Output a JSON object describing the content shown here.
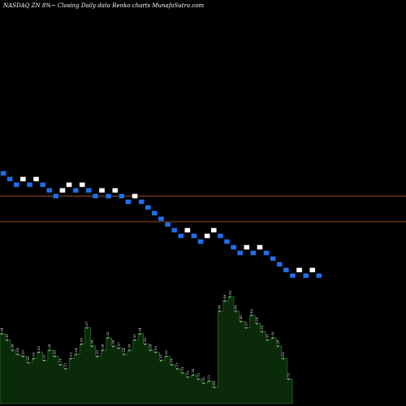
{
  "header": {
    "title": "NASDAQ ZN  8%~  Closing Daily data  Renko  charts MunafaSutra.com"
  },
  "colors": {
    "background": "#000000",
    "up_brick": "#ffffff",
    "down_brick": "#1e6fe8",
    "brick_border": "#000000",
    "reference_line": "#c8642e",
    "volume_fill": "#0a2a0a",
    "volume_stroke": "#2e8b2e",
    "text": "#ffffff"
  },
  "chart_data": [
    {
      "type": "renko",
      "title": "NASDAQ ZN  8%~  Closing Daily data  Renko  charts MunafaSutra.com",
      "xlabel": "",
      "ylabel": "",
      "ylim": [
        0,
        31
      ],
      "bricks": [
        {
          "level": 30,
          "dir": "down"
        },
        {
          "level": 29,
          "dir": "down"
        },
        {
          "level": 28,
          "dir": "down"
        },
        {
          "level": 29,
          "dir": "up"
        },
        {
          "level": 28,
          "dir": "down"
        },
        {
          "level": 29,
          "dir": "up"
        },
        {
          "level": 28,
          "dir": "down"
        },
        {
          "level": 27,
          "dir": "down"
        },
        {
          "level": 26,
          "dir": "down"
        },
        {
          "level": 27,
          "dir": "up"
        },
        {
          "level": 28,
          "dir": "up"
        },
        {
          "level": 27,
          "dir": "down"
        },
        {
          "level": 28,
          "dir": "up"
        },
        {
          "level": 27,
          "dir": "down"
        },
        {
          "level": 26,
          "dir": "down"
        },
        {
          "level": 27,
          "dir": "up"
        },
        {
          "level": 26,
          "dir": "down"
        },
        {
          "level": 27,
          "dir": "up"
        },
        {
          "level": 26,
          "dir": "down"
        },
        {
          "level": 25,
          "dir": "down"
        },
        {
          "level": 26,
          "dir": "up"
        },
        {
          "level": 25,
          "dir": "down"
        },
        {
          "level": 24,
          "dir": "down"
        },
        {
          "level": 23,
          "dir": "down"
        },
        {
          "level": 22,
          "dir": "down"
        },
        {
          "level": 21,
          "dir": "down"
        },
        {
          "level": 20,
          "dir": "down"
        },
        {
          "level": 19,
          "dir": "down"
        },
        {
          "level": 20,
          "dir": "up"
        },
        {
          "level": 19,
          "dir": "down"
        },
        {
          "level": 18,
          "dir": "down"
        },
        {
          "level": 19,
          "dir": "up"
        },
        {
          "level": 20,
          "dir": "up"
        },
        {
          "level": 19,
          "dir": "down"
        },
        {
          "level": 18,
          "dir": "down"
        },
        {
          "level": 17,
          "dir": "down"
        },
        {
          "level": 16,
          "dir": "down"
        },
        {
          "level": 17,
          "dir": "up"
        },
        {
          "level": 16,
          "dir": "down"
        },
        {
          "level": 17,
          "dir": "up"
        },
        {
          "level": 16,
          "dir": "down"
        },
        {
          "level": 15,
          "dir": "down"
        },
        {
          "level": 14,
          "dir": "down"
        },
        {
          "level": 13,
          "dir": "down"
        },
        {
          "level": 12,
          "dir": "down"
        },
        {
          "level": 13,
          "dir": "up"
        },
        {
          "level": 12,
          "dir": "down"
        },
        {
          "level": 13,
          "dir": "up"
        },
        {
          "level": 12,
          "dir": "down"
        }
      ],
      "reference_levels": [
        25.5,
        21.0
      ],
      "volume": {
        "values": [
          0.34,
          0.31,
          0.26,
          0.24,
          0.23,
          0.2,
          0.22,
          0.25,
          0.21,
          0.26,
          0.23,
          0.19,
          0.17,
          0.22,
          0.24,
          0.29,
          0.37,
          0.28,
          0.23,
          0.26,
          0.32,
          0.28,
          0.27,
          0.24,
          0.26,
          0.31,
          0.34,
          0.29,
          0.26,
          0.25,
          0.21,
          0.23,
          0.19,
          0.17,
          0.15,
          0.13,
          0.14,
          0.12,
          0.1,
          0.11,
          0.08,
          0.45,
          0.5,
          0.52,
          0.45,
          0.4,
          0.37,
          0.43,
          0.39,
          0.35,
          0.31,
          0.32,
          0.28,
          0.22,
          0.12
        ],
        "labels": [
          "0.34",
          "0.31",
          "0.26",
          "0.24",
          "0.23",
          "0.20",
          "0.22",
          "0.25",
          "0.21",
          "0.26",
          "0.23",
          "0.19",
          "0.17",
          "0.22",
          "0.24",
          "0.29",
          "0.37",
          "0.28",
          "0.23",
          "0.26",
          "0.32",
          "0.28",
          "0.27",
          "0.24",
          "0.26",
          "0.31",
          "0.34",
          "0.29",
          "0.26",
          "0.25",
          "0.21",
          "0.23",
          "0.19",
          "0.17",
          "0.15",
          "0.13",
          "0.14",
          "0.12",
          "0.10",
          "0.11",
          "0.08",
          "0.45",
          "0.50",
          "0.52",
          "0.45",
          "0.40",
          "0.37",
          "0.43",
          "0.39",
          "0.35",
          "0.31",
          "0.32",
          "0.28",
          "0.22",
          "0.12"
        ],
        "ylim": [
          0,
          0.6
        ]
      }
    }
  ]
}
